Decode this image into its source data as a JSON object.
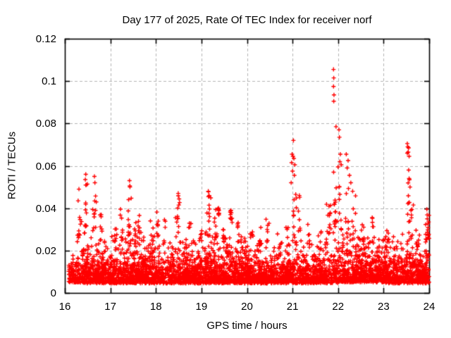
{
  "window": {
    "background": "#ffffff"
  },
  "chart_data": {
    "type": "scatter",
    "title": "Day 177 of 2025, Rate Of TEC Index for receiver norf",
    "xlabel": "GPS time / hours",
    "ylabel": "ROTI / TECUs",
    "series_name": "ROTI",
    "xlim": [
      16,
      24
    ],
    "ylim": [
      0,
      0.12
    ],
    "xticks": [
      16,
      17,
      18,
      19,
      20,
      21,
      22,
      23,
      24
    ],
    "yticks": [
      0,
      0.02,
      0.04,
      0.06,
      0.08,
      0.1,
      0.12
    ],
    "ytick_labels": [
      "0",
      "0.02",
      "0.04",
      "0.06",
      "0.08",
      "0.1",
      "0.12"
    ],
    "grid": {
      "show": true,
      "color": "#b3b3b3",
      "dash": [
        4,
        3
      ]
    },
    "axis_color": "#000000",
    "marker": {
      "symbol": "+",
      "color": "#ff0000",
      "size": 7
    },
    "legend": "none",
    "scatter_model": {
      "seed": 20250177,
      "comment_units": "x in GPS hours, y in TECUs; baseline_segments=[x0,x1,n,ymin,scale,ymax] truncated-exponential band; columns=[xcenter,width,n,y0,y1] vertical bursts; outliers=[x,y] exact points",
      "baseline_segments": [
        [
          16.08,
          16.25,
          70,
          0.005,
          0.004,
          0.018
        ],
        [
          16.25,
          17.0,
          400,
          0.0045,
          0.006,
          0.028
        ],
        [
          17.0,
          18.0,
          540,
          0.0045,
          0.006,
          0.027
        ],
        [
          18.0,
          19.0,
          540,
          0.0045,
          0.0055,
          0.026
        ],
        [
          19.0,
          20.0,
          560,
          0.0045,
          0.006,
          0.028
        ],
        [
          20.0,
          21.0,
          520,
          0.0045,
          0.0052,
          0.024
        ],
        [
          21.0,
          22.0,
          500,
          0.0045,
          0.0055,
          0.026
        ],
        [
          22.0,
          23.0,
          520,
          0.005,
          0.0065,
          0.03
        ],
        [
          23.0,
          24.0,
          500,
          0.0045,
          0.006,
          0.028
        ]
      ],
      "columns": [
        [
          16.31,
          0.06,
          10,
          0.026,
          0.049
        ],
        [
          16.46,
          0.05,
          12,
          0.028,
          0.0555
        ],
        [
          16.65,
          0.06,
          11,
          0.028,
          0.054
        ],
        [
          16.8,
          0.05,
          7,
          0.024,
          0.038
        ],
        [
          17.1,
          0.06,
          8,
          0.024,
          0.036
        ],
        [
          17.25,
          0.05,
          7,
          0.025,
          0.04
        ],
        [
          17.42,
          0.06,
          12,
          0.027,
          0.0525
        ],
        [
          17.55,
          0.04,
          6,
          0.024,
          0.034
        ],
        [
          17.64,
          0.05,
          8,
          0.025,
          0.037
        ],
        [
          17.9,
          0.05,
          6,
          0.023,
          0.034
        ],
        [
          18.05,
          0.05,
          8,
          0.025,
          0.043
        ],
        [
          18.2,
          0.05,
          6,
          0.023,
          0.036
        ],
        [
          18.48,
          0.07,
          13,
          0.026,
          0.047
        ],
        [
          18.75,
          0.05,
          6,
          0.022,
          0.033
        ],
        [
          19.0,
          0.04,
          5,
          0.022,
          0.032
        ],
        [
          19.15,
          0.07,
          14,
          0.027,
          0.048
        ],
        [
          19.3,
          0.05,
          8,
          0.026,
          0.043
        ],
        [
          19.38,
          0.03,
          9,
          0.036,
          0.043
        ],
        [
          19.5,
          0.05,
          7,
          0.024,
          0.036
        ],
        [
          19.65,
          0.04,
          10,
          0.033,
          0.041
        ],
        [
          19.8,
          0.05,
          6,
          0.023,
          0.034
        ],
        [
          20.1,
          0.05,
          6,
          0.022,
          0.03
        ],
        [
          20.3,
          0.05,
          7,
          0.022,
          0.031
        ],
        [
          20.45,
          0.05,
          8,
          0.024,
          0.037
        ],
        [
          20.7,
          0.05,
          5,
          0.021,
          0.028
        ],
        [
          20.9,
          0.05,
          6,
          0.022,
          0.033
        ],
        [
          21.05,
          0.06,
          9,
          0.026,
          0.045
        ],
        [
          21.15,
          0.04,
          6,
          0.028,
          0.046
        ],
        [
          21.35,
          0.05,
          6,
          0.023,
          0.033
        ],
        [
          21.6,
          0.05,
          5,
          0.021,
          0.03
        ],
        [
          21.8,
          0.07,
          14,
          0.028,
          0.042
        ],
        [
          21.91,
          0.05,
          10,
          0.028,
          0.058
        ],
        [
          21.95,
          0.04,
          6,
          0.03,
          0.044
        ],
        [
          22.05,
          0.05,
          8,
          0.028,
          0.052
        ],
        [
          22.2,
          0.06,
          9,
          0.028,
          0.05
        ],
        [
          22.35,
          0.05,
          7,
          0.025,
          0.046
        ],
        [
          22.55,
          0.05,
          7,
          0.024,
          0.035
        ],
        [
          22.75,
          0.05,
          7,
          0.024,
          0.036
        ],
        [
          23.1,
          0.06,
          7,
          0.024,
          0.033
        ],
        [
          23.55,
          0.06,
          10,
          0.028,
          0.058
        ],
        [
          23.62,
          0.05,
          7,
          0.026,
          0.044
        ],
        [
          23.75,
          0.04,
          5,
          0.022,
          0.03
        ],
        [
          23.95,
          0.05,
          8,
          0.025,
          0.04
        ],
        [
          23.98,
          0.04,
          8,
          0.024,
          0.038
        ]
      ],
      "outliers": [
        [
          21.9,
          0.1055
        ],
        [
          21.905,
          0.1015
        ],
        [
          21.9,
          0.0975
        ],
        [
          21.91,
          0.0935
        ],
        [
          21.905,
          0.0905
        ],
        [
          21.955,
          0.0785
        ],
        [
          22.02,
          0.077
        ],
        [
          22.03,
          0.0735
        ],
        [
          22.05,
          0.0655
        ],
        [
          22.04,
          0.062
        ],
        [
          22.07,
          0.0605
        ],
        [
          22.0,
          0.0595
        ],
        [
          22.18,
          0.0655
        ],
        [
          22.22,
          0.0625
        ],
        [
          22.2,
          0.059
        ],
        [
          22.25,
          0.0555
        ],
        [
          22.28,
          0.052
        ],
        [
          22.32,
          0.048
        ],
        [
          21.02,
          0.072
        ],
        [
          20.99,
          0.0655
        ],
        [
          21.01,
          0.0645
        ],
        [
          21.03,
          0.0635
        ],
        [
          20.98,
          0.0615
        ],
        [
          21.05,
          0.0605
        ],
        [
          21.0,
          0.0575
        ],
        [
          21.04,
          0.0555
        ],
        [
          20.97,
          0.052
        ],
        [
          21.07,
          0.0465
        ],
        [
          23.52,
          0.0705
        ],
        [
          23.53,
          0.069
        ],
        [
          23.55,
          0.0685
        ],
        [
          23.54,
          0.0665
        ],
        [
          23.52,
          0.066
        ],
        [
          23.56,
          0.0645
        ],
        [
          23.55,
          0.058
        ],
        [
          23.56,
          0.054
        ],
        [
          23.58,
          0.05
        ],
        [
          16.46,
          0.056
        ],
        [
          16.45,
          0.0535
        ],
        [
          16.47,
          0.051
        ],
        [
          16.65,
          0.055
        ],
        [
          16.66,
          0.052
        ],
        [
          17.42,
          0.053
        ],
        [
          17.43,
          0.05
        ],
        [
          16.31,
          0.049
        ],
        [
          18.49,
          0.047
        ],
        [
          19.15,
          0.048
        ],
        [
          19.17,
          0.046
        ],
        [
          21.15,
          0.046
        ],
        [
          23.95,
          0.0395
        ]
      ]
    }
  }
}
